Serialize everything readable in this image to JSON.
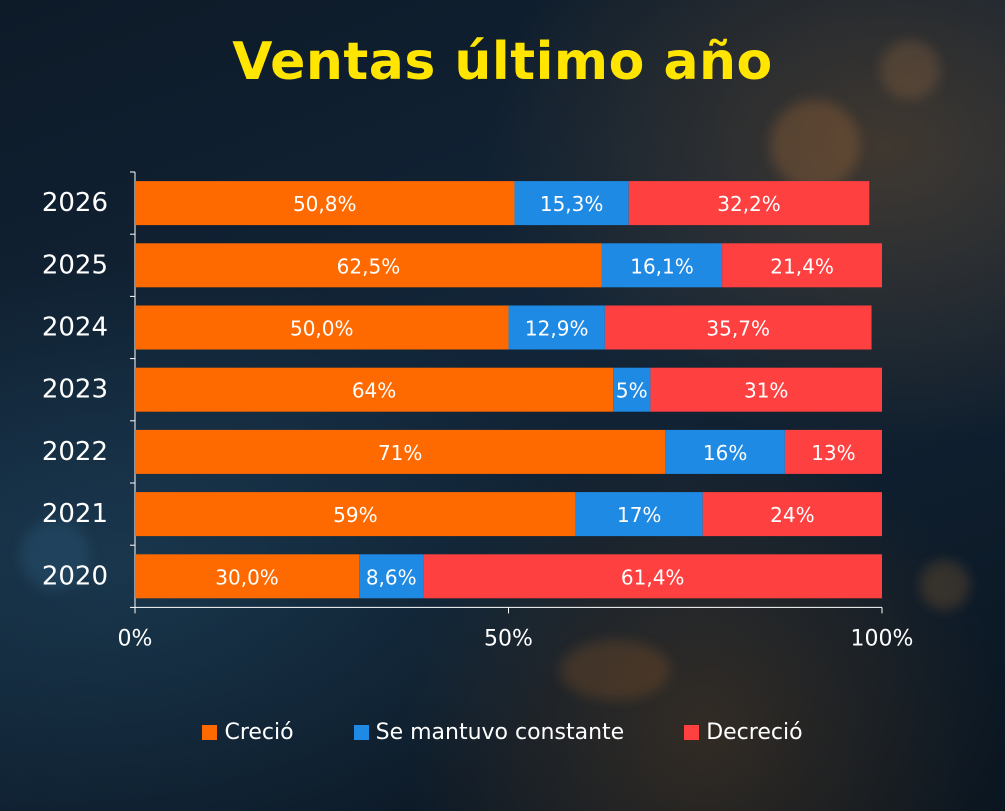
{
  "title": "Ventas último año",
  "colors": {
    "crecio": "#ff6a00",
    "constante": "#1f8ae3",
    "decrecio": "#ff4040",
    "title": "#ffe500"
  },
  "chart_data": {
    "type": "bar",
    "orientation": "horizontal",
    "stacked": true,
    "title": "Ventas último año",
    "categories": [
      "2026",
      "2025",
      "2024",
      "2023",
      "2022",
      "2021",
      "2020"
    ],
    "series": [
      {
        "name": "Creció",
        "values": [
          50.8,
          62.5,
          50.0,
          64,
          71,
          59,
          30.0
        ],
        "labels": [
          "50,8%",
          "62,5%",
          "50,0%",
          "64%",
          "71%",
          "59%",
          "30,0%"
        ]
      },
      {
        "name": "Se mantuvo constante",
        "values": [
          15.3,
          16.1,
          12.9,
          5,
          16,
          17,
          8.6
        ],
        "labels": [
          "15,3%",
          "16,1%",
          "12,9%",
          "5%",
          "16%",
          "17%",
          "8,6%"
        ]
      },
      {
        "name": "Decreció",
        "values": [
          32.2,
          21.4,
          35.7,
          31,
          13,
          24,
          61.4
        ],
        "labels": [
          "32,2%",
          "21,4%",
          "35,7%",
          "31%",
          "13%",
          "24%",
          "61,4%"
        ]
      }
    ],
    "xticks": [
      "0%",
      "50%",
      "100%"
    ],
    "xlim": [
      0,
      100
    ],
    "legend_position": "bottom",
    "grid": false
  }
}
